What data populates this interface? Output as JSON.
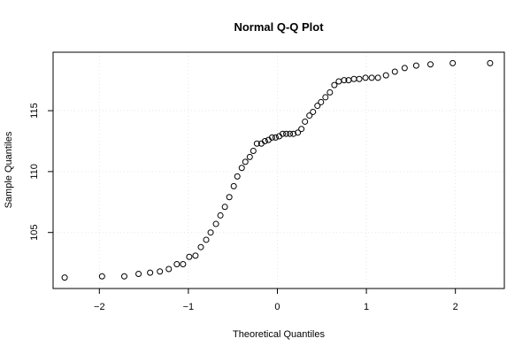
{
  "chart_data": {
    "type": "scatter",
    "title": "Normal Q-Q Plot",
    "xlabel": "Theoretical Quantiles",
    "ylabel": "Sample Quantiles",
    "xlim": [
      -2.52,
      2.55
    ],
    "ylim": [
      100.4,
      119.8
    ],
    "xticks": [
      -2,
      -1,
      0,
      1,
      2
    ],
    "xtick_labels": [
      "−2",
      "−1",
      "0",
      "1",
      "2"
    ],
    "yticks": [
      105,
      110,
      115
    ],
    "ytick_labels": [
      "105",
      "110",
      "115"
    ],
    "grid": true,
    "points": [
      [
        -2.39,
        101.3
      ],
      [
        -1.97,
        101.4
      ],
      [
        -1.72,
        101.4
      ],
      [
        -1.56,
        101.6
      ],
      [
        -1.43,
        101.7
      ],
      [
        -1.32,
        101.8
      ],
      [
        -1.22,
        102.0
      ],
      [
        -1.13,
        102.4
      ],
      [
        -1.06,
        102.4
      ],
      [
        -0.99,
        103.0
      ],
      [
        -0.92,
        103.1
      ],
      [
        -0.86,
        103.8
      ],
      [
        -0.8,
        104.4
      ],
      [
        -0.75,
        105.0
      ],
      [
        -0.69,
        105.7
      ],
      [
        -0.64,
        106.4
      ],
      [
        -0.59,
        107.1
      ],
      [
        -0.54,
        107.9
      ],
      [
        -0.49,
        108.8
      ],
      [
        -0.45,
        109.6
      ],
      [
        -0.4,
        110.3
      ],
      [
        -0.36,
        110.8
      ],
      [
        -0.31,
        111.2
      ],
      [
        -0.27,
        111.7
      ],
      [
        -0.23,
        112.3
      ],
      [
        -0.18,
        112.3
      ],
      [
        -0.14,
        112.5
      ],
      [
        -0.1,
        112.6
      ],
      [
        -0.06,
        112.8
      ],
      [
        -0.02,
        112.8
      ],
      [
        0.02,
        112.9
      ],
      [
        0.06,
        113.1
      ],
      [
        0.1,
        113.1
      ],
      [
        0.14,
        113.1
      ],
      [
        0.18,
        113.1
      ],
      [
        0.23,
        113.2
      ],
      [
        0.27,
        113.5
      ],
      [
        0.31,
        114.1
      ],
      [
        0.36,
        114.6
      ],
      [
        0.4,
        114.9
      ],
      [
        0.45,
        115.4
      ],
      [
        0.49,
        115.7
      ],
      [
        0.54,
        116.1
      ],
      [
        0.59,
        116.5
      ],
      [
        0.64,
        117.1
      ],
      [
        0.69,
        117.4
      ],
      [
        0.75,
        117.5
      ],
      [
        0.8,
        117.5
      ],
      [
        0.86,
        117.6
      ],
      [
        0.92,
        117.6
      ],
      [
        0.99,
        117.7
      ],
      [
        1.06,
        117.7
      ],
      [
        1.13,
        117.7
      ],
      [
        1.22,
        117.9
      ],
      [
        1.32,
        118.2
      ],
      [
        1.43,
        118.5
      ],
      [
        1.56,
        118.7
      ],
      [
        1.72,
        118.8
      ],
      [
        1.97,
        118.9
      ],
      [
        2.39,
        118.9
      ]
    ]
  }
}
